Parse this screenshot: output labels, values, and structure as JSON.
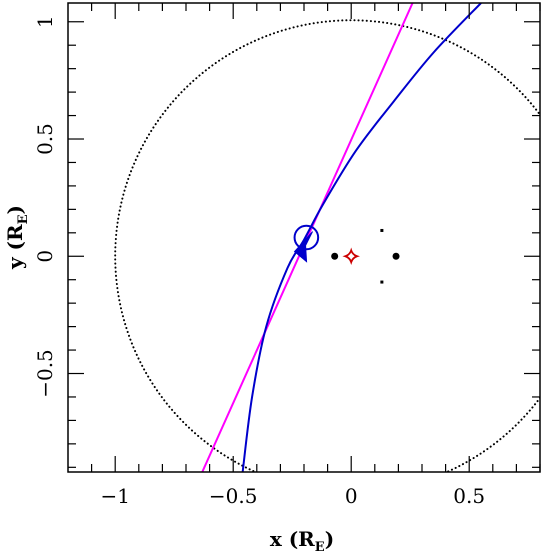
{
  "chart_data": {
    "type": "line",
    "xlabel": {
      "main": "x (R",
      "sub": "E",
      "close": ")"
    },
    "ylabel": {
      "main": "y (R",
      "sub": "E",
      "close": ")"
    },
    "xlim": [
      -1.2,
      0.8
    ],
    "ylim": [
      -0.92,
      1.08
    ],
    "xticks": [
      -1,
      -0.5,
      0,
      0.5
    ],
    "xtick_labels": [
      "−1",
      "−0.5",
      "0",
      "0.5"
    ],
    "yticks": [
      -0.5,
      0,
      0.5,
      1
    ],
    "ytick_labels": [
      "−0.5",
      "0",
      "0.5",
      "1"
    ],
    "minor_step": 0.1,
    "einstein_ring": {
      "center": [
        0,
        0
      ],
      "radius": 1.0,
      "color": "#000000",
      "style": "dotted"
    },
    "source_trajectory": {
      "color": "#ff00ff",
      "points": [
        [
          -0.64,
          -0.94
        ],
        [
          0.26,
          1.08
        ]
      ]
    },
    "caustic_crossing_curve": {
      "color": "#0000cc",
      "points": [
        [
          -0.46,
          -0.92
        ],
        [
          -0.42,
          -0.6
        ],
        [
          -0.36,
          -0.3
        ],
        [
          -0.27,
          -0.05
        ],
        [
          -0.2,
          0.07
        ],
        [
          -0.12,
          0.22
        ],
        [
          0.02,
          0.45
        ],
        [
          0.18,
          0.66
        ],
        [
          0.35,
          0.87
        ],
        [
          0.55,
          1.08
        ]
      ]
    },
    "source_circle": {
      "center": [
        -0.19,
        0.08
      ],
      "radius": 0.05,
      "color": "#0000cc"
    },
    "direction_arrow": {
      "tip": [
        -0.24,
        0.02
      ],
      "direction": "southwest",
      "color": "#0000cc"
    },
    "lens_components": {
      "color": "#000000",
      "points": [
        [
          -0.07,
          0
        ],
        [
          0.19,
          0
        ]
      ]
    },
    "planetary_caustics": {
      "color": "#000000",
      "points": [
        [
          0.13,
          0.11
        ],
        [
          0.13,
          -0.11
        ]
      ]
    },
    "central_caustic": {
      "center": [
        0,
        0
      ],
      "size": 0.025,
      "color": "#cc0000"
    }
  }
}
